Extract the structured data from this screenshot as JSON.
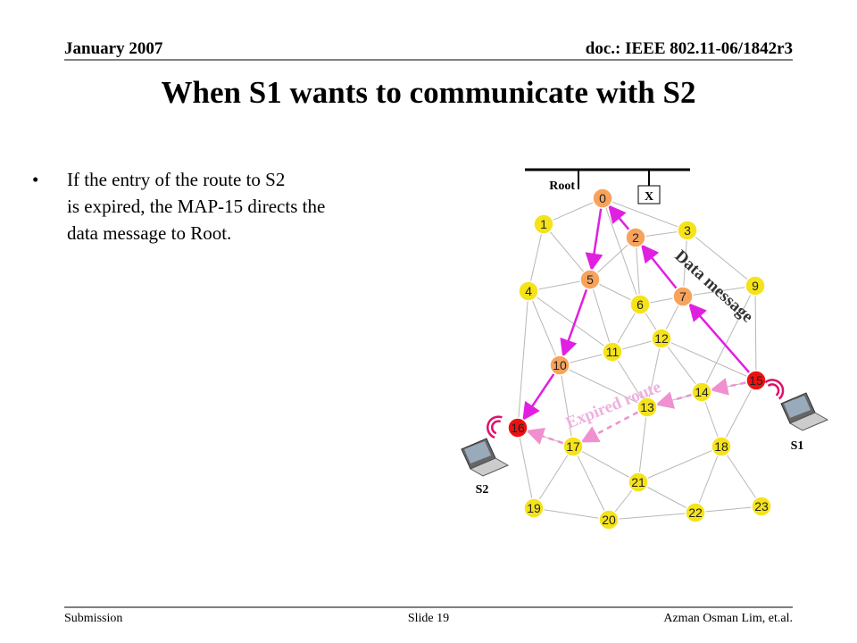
{
  "header": {
    "date": "January 2007",
    "doc": "doc.: IEEE 802.11-06/1842r3"
  },
  "title": "When S1 wants to communicate with S2",
  "bullets": [
    "If the entry of the route to S2  is expired, the MAP-15 directs the data message to Root."
  ],
  "diagram": {
    "root_label": "Root",
    "x_label": "X",
    "data_message": "Data message",
    "expired_route": "Expired route",
    "s1": "S1",
    "s2": "S2",
    "nodes": [
      "0",
      "1",
      "2",
      "3",
      "4",
      "5",
      "6",
      "7",
      "9",
      "10",
      "11",
      "12",
      "13",
      "14",
      "15",
      "16",
      "17",
      "18",
      "19",
      "20",
      "21",
      "22",
      "23"
    ]
  },
  "footer": {
    "left": "Submission",
    "center": "Slide 19",
    "right": "Azman Osman Lim, et.al."
  }
}
